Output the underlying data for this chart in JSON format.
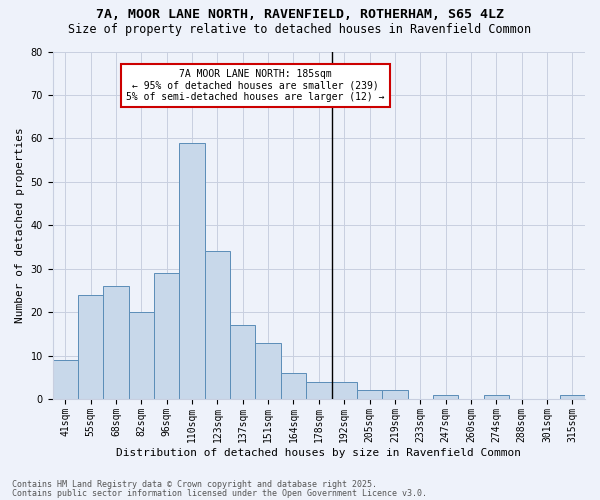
{
  "title1": "7A, MOOR LANE NORTH, RAVENFIELD, ROTHERHAM, S65 4LZ",
  "title2": "Size of property relative to detached houses in Ravenfield Common",
  "xlabel": "Distribution of detached houses by size in Ravenfield Common",
  "ylabel": "Number of detached properties",
  "categories": [
    "41sqm",
    "55sqm",
    "68sqm",
    "82sqm",
    "96sqm",
    "110sqm",
    "123sqm",
    "137sqm",
    "151sqm",
    "164sqm",
    "178sqm",
    "192sqm",
    "205sqm",
    "219sqm",
    "233sqm",
    "247sqm",
    "260sqm",
    "274sqm",
    "288sqm",
    "301sqm",
    "315sqm"
  ],
  "values": [
    9,
    24,
    26,
    20,
    29,
    59,
    34,
    17,
    13,
    6,
    4,
    4,
    2,
    2,
    0,
    1,
    0,
    1,
    0,
    0,
    1
  ],
  "bar_color": "#c8d8ea",
  "bar_edge_color": "#5b8db8",
  "ylim": [
    0,
    80
  ],
  "yticks": [
    0,
    10,
    20,
    30,
    40,
    50,
    60,
    70,
    80
  ],
  "property_line_x": 10.5,
  "annotation_text": "7A MOOR LANE NORTH: 185sqm\n← 95% of detached houses are smaller (239)\n5% of semi-detached houses are larger (12) →",
  "annotation_box_color": "#ffffff",
  "annotation_box_edge": "#cc0000",
  "footer1": "Contains HM Land Registry data © Crown copyright and database right 2025.",
  "footer2": "Contains public sector information licensed under the Open Government Licence v3.0.",
  "bg_color": "#eef2fa",
  "grid_color": "#c8cfe0",
  "title_fontsize": 9.5,
  "subtitle_fontsize": 8.5,
  "axis_label_fontsize": 8,
  "tick_fontsize": 7,
  "annotation_fontsize": 7,
  "footer_fontsize": 6
}
